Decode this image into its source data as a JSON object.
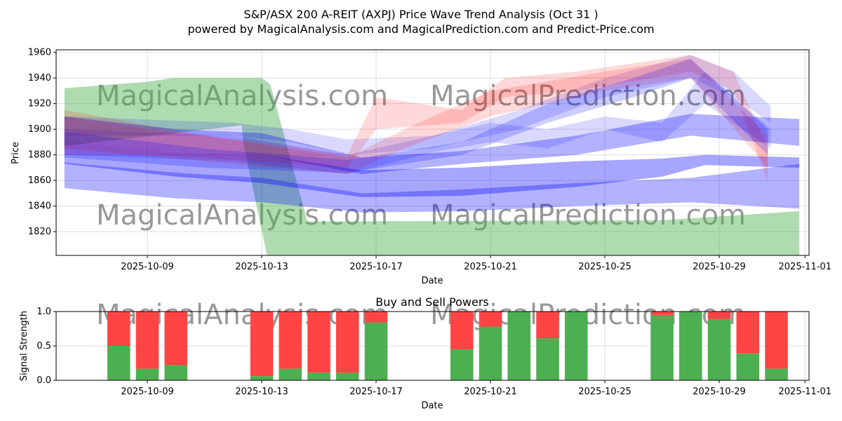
{
  "chart_data": [
    {
      "type": "area",
      "title": "S&P/ASX 200 A-REIT (AXPJ) Price Wave Trend Analysis (Oct 31 )",
      "subtitle": "powered by MagicalAnalysis.com and MagicalPrediction.com and Predict-Price.com",
      "xlabel": "Date",
      "ylabel": "Price",
      "ylim": [
        1801.5,
        1962
      ],
      "x_origin_date": "2025-10-09",
      "xlim_days": [
        -3.19,
        23.14
      ],
      "x_ticks": [
        {
          "day": 0,
          "label": "2025-10-09"
        },
        {
          "day": 4,
          "label": "2025-10-13"
        },
        {
          "day": 8,
          "label": "2025-10-17"
        },
        {
          "day": 12,
          "label": "2025-10-21"
        },
        {
          "day": 16,
          "label": "2025-10-25"
        },
        {
          "day": 20,
          "label": "2025-10-29"
        },
        {
          "day": 23,
          "label": "2025-11-01"
        }
      ],
      "y_ticks": [
        1820,
        1840,
        1860,
        1880,
        1900,
        1920,
        1940,
        1960
      ],
      "grid": true,
      "watermarks": [
        "MagicalAnalysis.com",
        "MagicalPrediction.com"
      ],
      "green_band": {
        "color": "#4caf50",
        "upper": [
          [
            -2.9,
            1932
          ],
          [
            0,
            1937
          ],
          [
            0.9,
            1940
          ],
          [
            4,
            1940
          ],
          [
            4.3,
            1935
          ],
          [
            5.6,
            1828
          ],
          [
            18,
            1829
          ],
          [
            22.8,
            1836
          ]
        ],
        "lower": [
          [
            -2.9,
            1887
          ],
          [
            3.3,
            1903
          ],
          [
            3.35,
            1890
          ],
          [
            4.2,
            1800
          ],
          [
            22.8,
            1800
          ]
        ]
      },
      "bands": [
        {
          "color": "#0000ff",
          "opacity": 0.3,
          "points": [
            [
              -2.9,
              1854,
              1874
            ],
            [
              1,
              1846,
              1866
            ],
            [
              4,
              1843,
              1862
            ],
            [
              7.5,
              1835,
              1850
            ],
            [
              11,
              1836,
              1853
            ],
            [
              15,
              1840,
              1858
            ],
            [
              19,
              1843,
              1862
            ],
            [
              22.8,
              1838,
              1873
            ]
          ]
        },
        {
          "color": "#0000ff",
          "opacity": 0.35,
          "points": [
            [
              -2.9,
              1873,
              1891
            ],
            [
              1,
              1863,
              1882
            ],
            [
              4,
              1858,
              1880
            ],
            [
              7.5,
              1847,
              1868
            ],
            [
              11,
              1848,
              1870
            ],
            [
              15,
              1855,
              1875
            ],
            [
              18,
              1863,
              1877
            ],
            [
              19.5,
              1872,
              1880
            ],
            [
              22.8,
              1870,
              1878
            ]
          ]
        },
        {
          "color": "#0000ff",
          "opacity": 0.3,
          "points": [
            [
              -2.9,
              1891,
              1910
            ],
            [
              1,
              1882,
              1900
            ],
            [
              4,
              1880,
              1897
            ],
            [
              7.5,
              1865,
              1878
            ],
            [
              11,
              1873,
              1883
            ],
            [
              15,
              1880,
              1895
            ],
            [
              19,
              1895,
              1912
            ],
            [
              22.8,
              1887,
              1908
            ]
          ]
        },
        {
          "color": "#0000ff",
          "opacity": 0.15,
          "points": [
            [
              -2.9,
              1895,
              1910
            ],
            [
              3,
              1895,
              1905
            ],
            [
              5,
              1890,
              1900
            ],
            [
              7,
              1880,
              1892
            ],
            [
              10,
              1885,
              1895
            ],
            [
              13,
              1900,
              1915
            ],
            [
              16,
              1925,
              1940
            ],
            [
              19,
              1940,
              1958
            ],
            [
              20.5,
              1925,
              1945
            ],
            [
              21.8,
              1905,
              1918
            ]
          ]
        },
        {
          "color": "#0000ff",
          "opacity": 0.15,
          "points": [
            [
              -2.9,
              1880,
              1900
            ],
            [
              3,
              1875,
              1895
            ],
            [
              7,
              1865,
              1880
            ],
            [
              10,
              1882,
              1895
            ],
            [
              12,
              1890,
              1905
            ],
            [
              14,
              1885,
              1900
            ],
            [
              16,
              1900,
              1910
            ],
            [
              18,
              1890,
              1905
            ],
            [
              19.5,
              1920,
              1945
            ],
            [
              21.8,
              1885,
              1900
            ]
          ]
        },
        {
          "color": "#ff0000",
          "opacity": 0.15,
          "points": [
            [
              -2.9,
              1880,
              1910
            ],
            [
              0,
              1880,
              1900
            ],
            [
              4,
              1875,
              1890
            ],
            [
              7,
              1870,
              1880
            ],
            [
              8,
              1900,
              1925
            ],
            [
              11,
              1905,
              1915
            ],
            [
              12.5,
              1925,
              1940
            ],
            [
              15,
              1930,
              1945
            ],
            [
              19,
              1945,
              1958
            ],
            [
              20.5,
              1930,
              1945
            ],
            [
              21.7,
              1860,
              1885
            ]
          ]
        },
        {
          "color": "#ff0000",
          "opacity": 0.15,
          "points": [
            [
              -2.9,
              1885,
              1915
            ],
            [
              2,
              1875,
              1895
            ],
            [
              7,
              1865,
              1878
            ],
            [
              9,
              1885,
              1900
            ],
            [
              12,
              1910,
              1930
            ],
            [
              16,
              1930,
              1945
            ],
            [
              19,
              1940,
              1955
            ],
            [
              21.7,
              1870,
              1895
            ]
          ]
        },
        {
          "color": "#0000ff",
          "opacity": 0.2,
          "points": [
            [
              -2.9,
              1878,
              1898
            ],
            [
              2,
              1870,
              1885
            ],
            [
              7,
              1866,
              1876
            ],
            [
              11,
              1880,
              1890
            ],
            [
              14,
              1905,
              1920
            ],
            [
              17,
              1925,
              1940
            ],
            [
              19,
              1940,
              1955
            ],
            [
              21.7,
              1880,
              1900
            ]
          ]
        }
      ]
    },
    {
      "type": "bar",
      "title": "Buy and Sell Powers",
      "xlabel": "Date",
      "ylabel": "Signal Strength",
      "ylim": [
        0,
        1
      ],
      "y_ticks": [
        {
          "v": 0,
          "label": "0.0"
        },
        {
          "v": 0.5,
          "label": "0.5"
        },
        {
          "v": 1,
          "label": "1.0"
        }
      ],
      "buy_color": "#4caf50",
      "sell_color": "#ff4444",
      "days": [
        -1,
        0,
        1,
        4,
        5,
        6,
        7,
        8,
        11,
        12,
        13,
        14,
        15,
        18,
        19,
        20,
        21,
        22
      ],
      "buy": [
        0.5,
        0.17,
        0.22,
        0.06,
        0.17,
        0.11,
        0.11,
        0.84,
        0.45,
        0.78,
        1.0,
        0.61,
        1.0,
        0.95,
        1.0,
        0.89,
        0.39,
        0.17
      ]
    }
  ]
}
